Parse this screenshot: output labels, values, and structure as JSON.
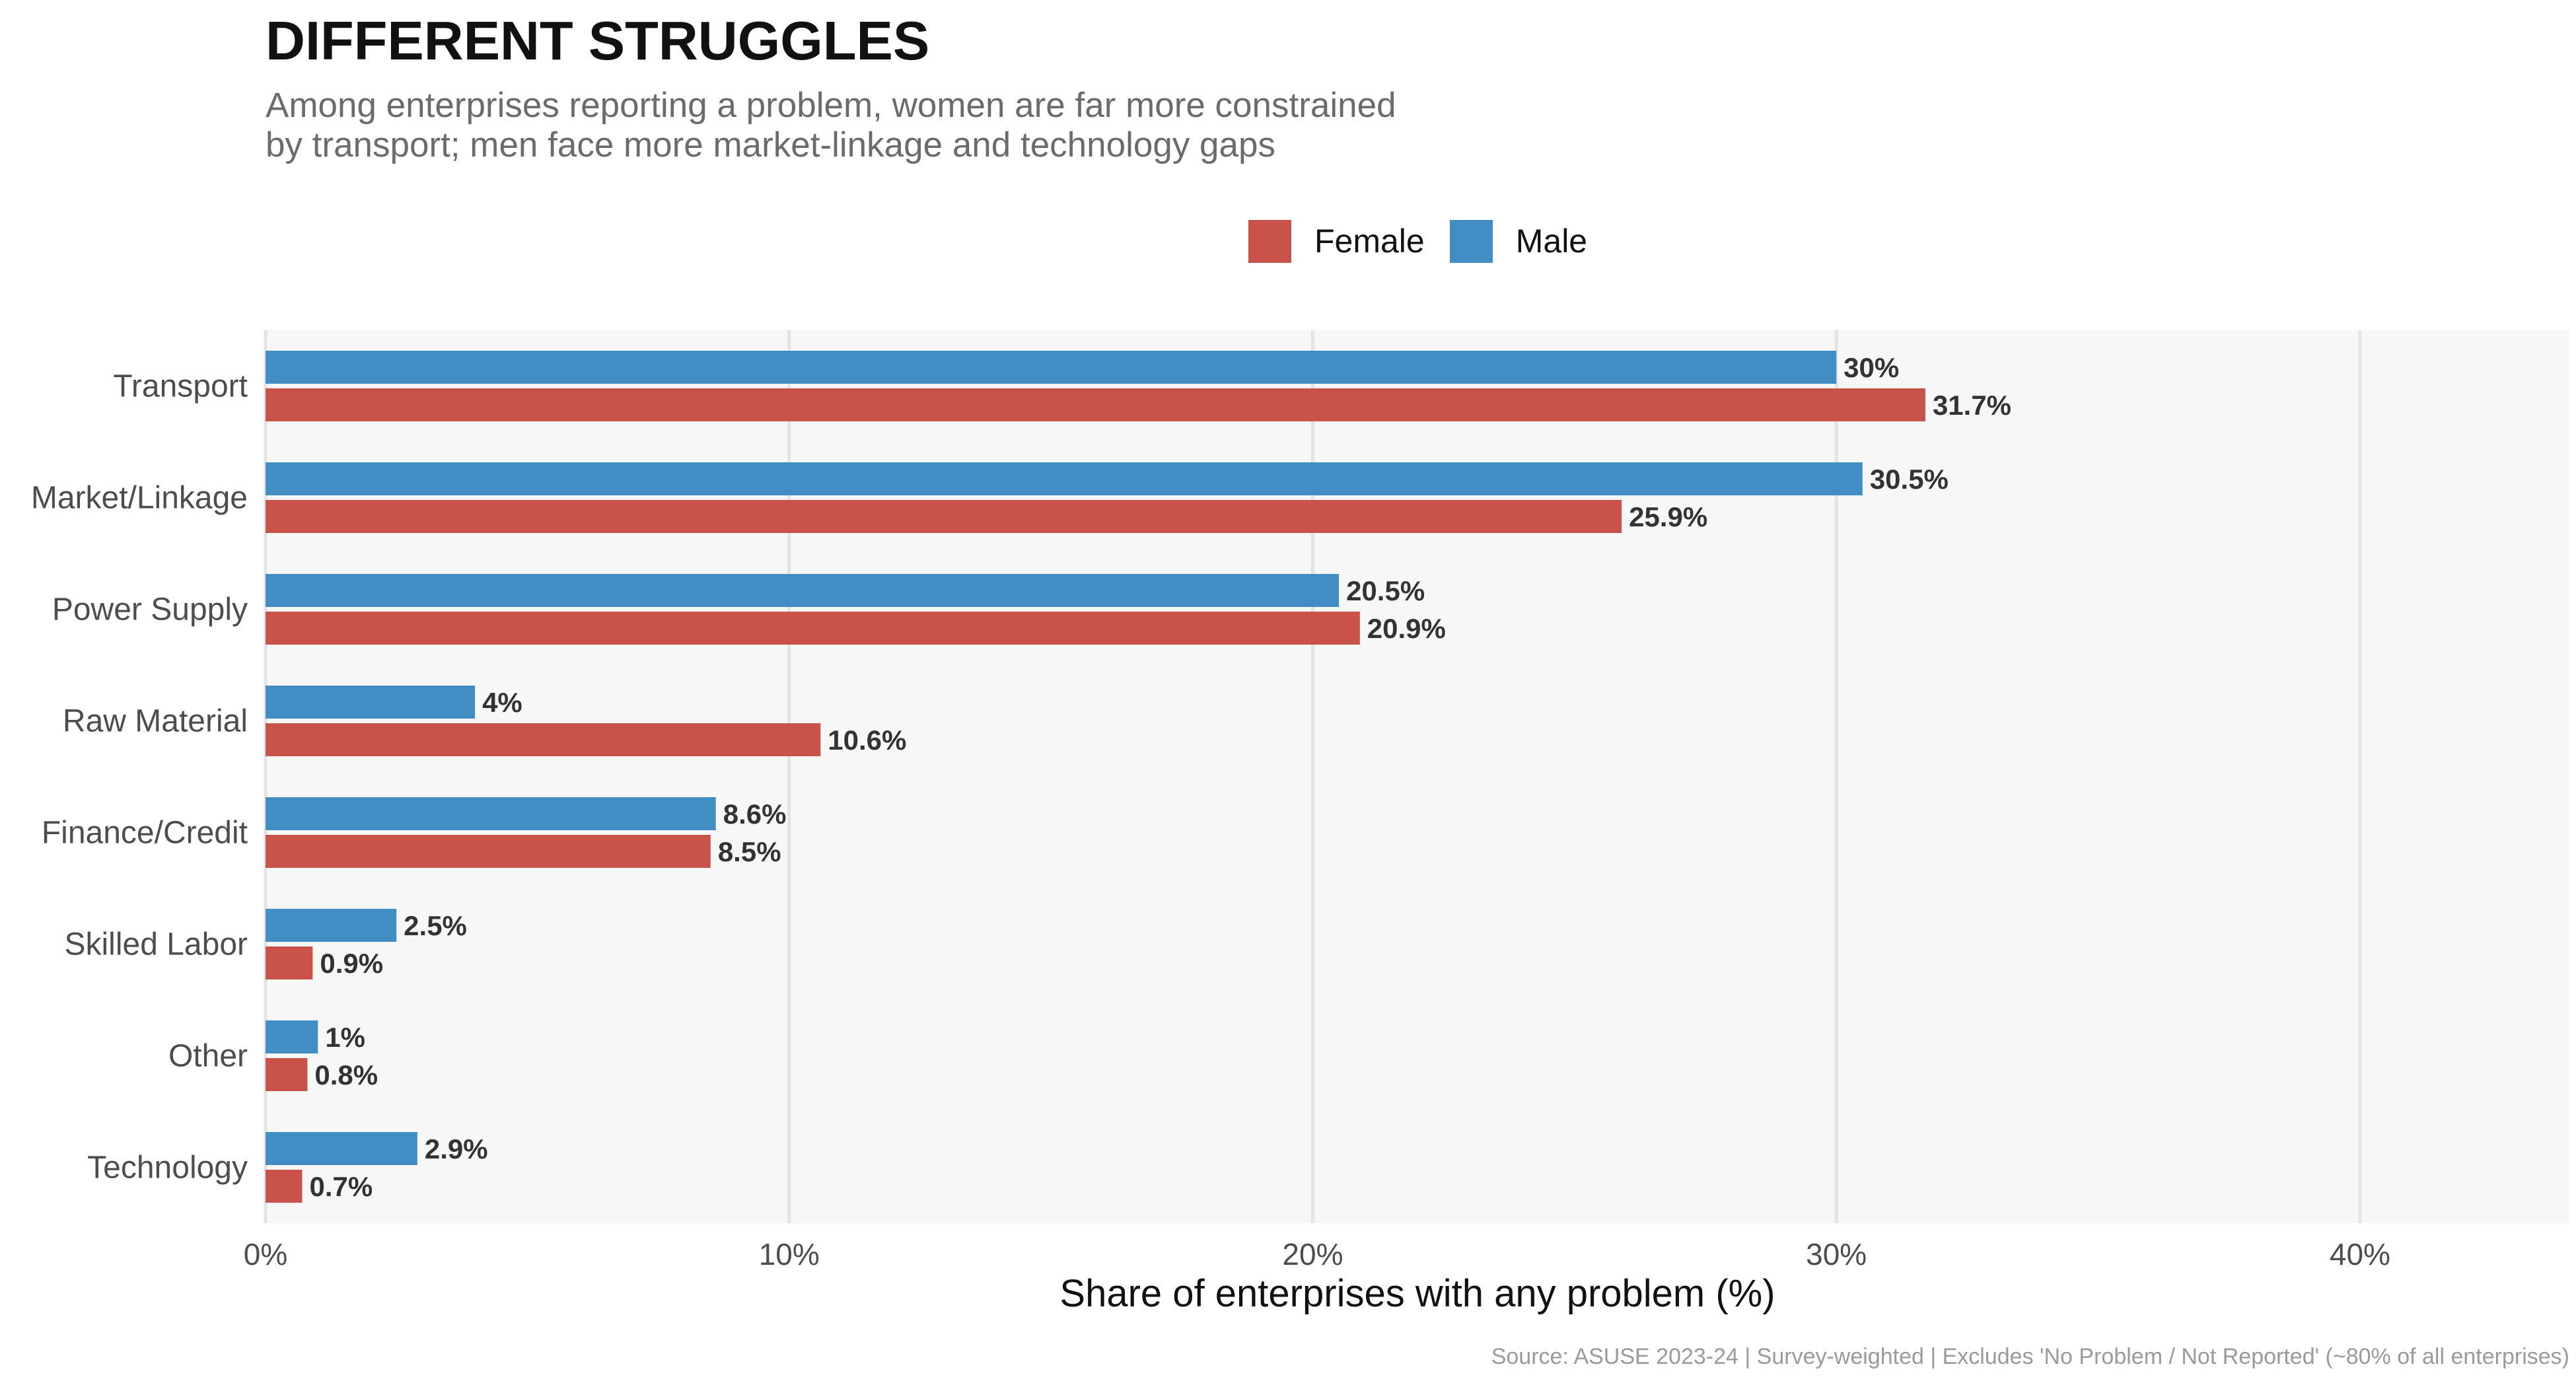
{
  "title": "DIFFERENT STRUGGLES",
  "subtitle_lines": [
    "Among enterprises reporting a problem, women are far more constrained",
    "by transport; men face more market-linkage and technology gaps"
  ],
  "source": "Source: ASUSE 2023-24 | Survey-weighted | Excludes 'No Problem / Not Reported' (~80% of all enterprises)",
  "colors": {
    "female": "#C9524A",
    "male": "#428EC4",
    "panel": "#F7F7F7",
    "grid": "#E4E4E4"
  },
  "legend": {
    "female": "Female",
    "male": "Male"
  },
  "chart_data": {
    "type": "bar",
    "orientation": "horizontal",
    "title": "DIFFERENT STRUGGLES",
    "xlabel": "Share of enterprises with any problem (%)",
    "ylabel": "",
    "xlim": [
      0,
      44
    ],
    "x_ticks": [
      0,
      10,
      20,
      30,
      40
    ],
    "x_tick_labels": [
      "0%",
      "10%",
      "20%",
      "30%",
      "40%"
    ],
    "grid": true,
    "legend_position": "top",
    "categories": [
      "Transport",
      "Market/Linkage",
      "Power Supply",
      "Raw Material",
      "Finance/Credit",
      "Skilled Labor",
      "Other",
      "Technology"
    ],
    "series": [
      {
        "name": "Male",
        "values": [
          30,
          30.5,
          20.5,
          4,
          8.6,
          2.5,
          1,
          2.9
        ],
        "labels": [
          "30%",
          "30.5%",
          "20.5%",
          "4%",
          "8.6%",
          "2.5%",
          "1%",
          "2.9%"
        ]
      },
      {
        "name": "Female",
        "values": [
          31.7,
          25.9,
          20.9,
          10.6,
          8.5,
          0.9,
          0.8,
          0.7
        ],
        "labels": [
          "31.7%",
          "25.9%",
          "20.9%",
          "10.6%",
          "8.5%",
          "0.9%",
          "0.8%",
          "0.7%"
        ]
      }
    ]
  }
}
